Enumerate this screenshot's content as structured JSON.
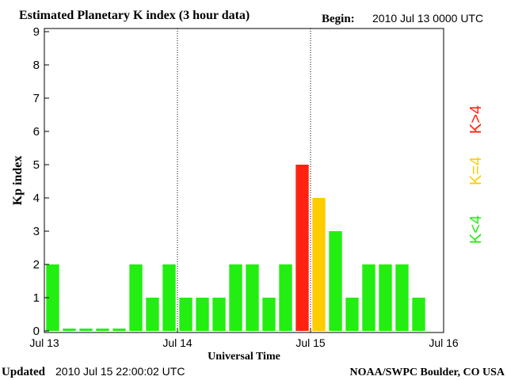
{
  "header": {
    "title": "Estimated Planetary K index (3 hour data)",
    "begin_label": "Begin:",
    "begin_value": "2010 Jul 13 0000 UTC"
  },
  "footer": {
    "updated_label": "Updated",
    "updated_value": "2010 Jul 15 22:00:02 UTC",
    "credit": "NOAA/SWPC Boulder, CO USA"
  },
  "legend": {
    "low": "K<4",
    "equal": "K=4",
    "high": "K>4"
  },
  "colors": {
    "low": "#22ee11",
    "equal": "#ffcc00",
    "high": "#ff2211"
  },
  "chart_data": {
    "type": "bar",
    "title": "Estimated Planetary K index (3 hour data)",
    "xlabel": "Universal Time",
    "ylabel": "Kp index",
    "ylim": [
      0,
      9
    ],
    "yticks": [
      "0",
      "1",
      "2",
      "3",
      "4",
      "5",
      "6",
      "7",
      "8",
      "9"
    ],
    "xticks": [
      "Jul 13",
      "Jul 14",
      "Jul 15",
      "Jul 16"
    ],
    "bars_per_day": 8,
    "day_dividers": "dotted",
    "values": [
      2,
      0.07,
      0.07,
      0.07,
      0.07,
      2,
      1,
      2,
      1,
      1,
      1,
      2,
      2,
      1,
      2,
      5,
      4,
      3,
      1,
      2,
      2,
      2,
      1
    ]
  }
}
